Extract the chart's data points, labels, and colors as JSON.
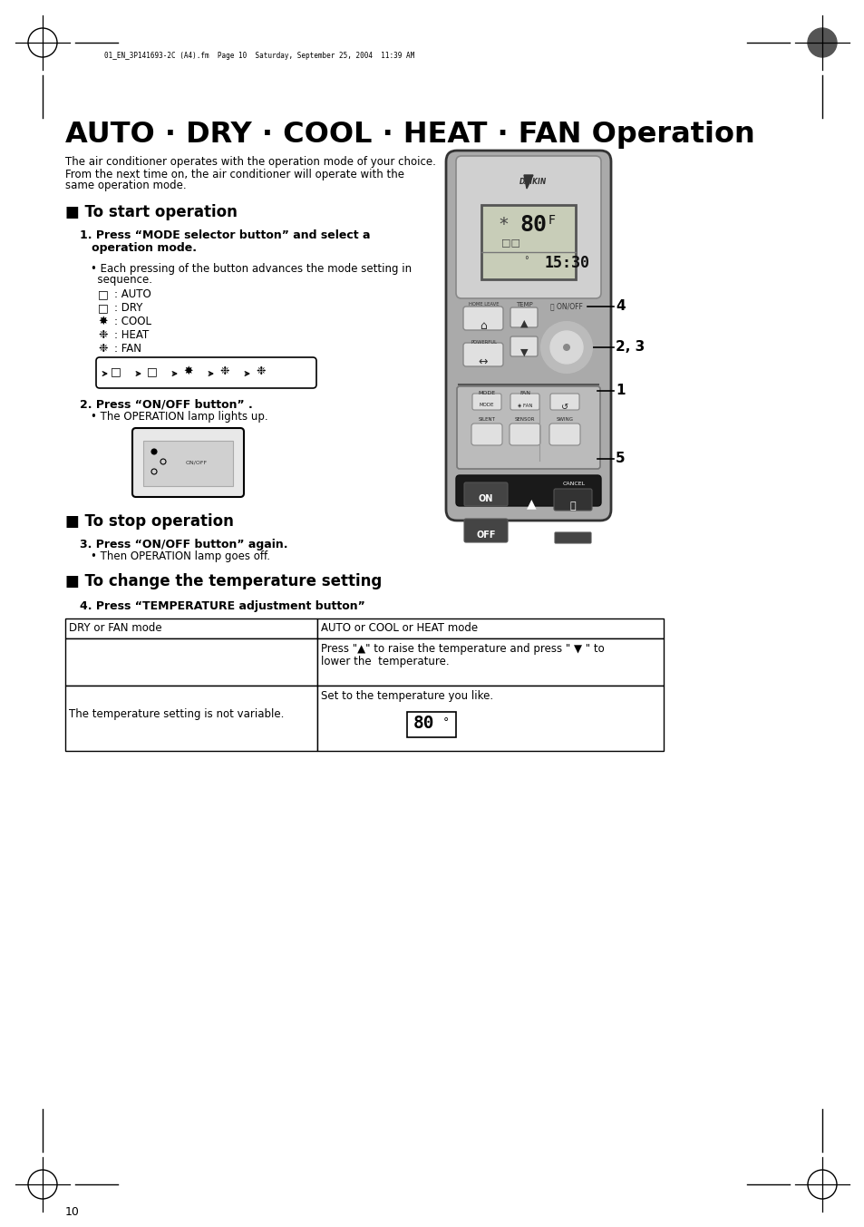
{
  "title": "AUTO · DRY · COOL · HEAT · FAN Operation",
  "page_num": "10",
  "header_text": "01_EN_3P141693-2C (A4).fm  Page 10  Saturday, September 25, 2004  11:39 AM",
  "intro_text1": "The air conditioner operates with the operation mode of your choice.",
  "intro_text2": "From the next time on, the air conditioner will operate with the",
  "intro_text3": "same operation mode.",
  "section1_title": "■ To start operation",
  "step1_line1": "1. Press “MODE selector button” and select a",
  "step1_line2": "   operation mode.",
  "step1_bullet1": "• Each pressing of the button advances the mode setting in",
  "step1_bullet2": "  sequence.",
  "mode1_icon": "□",
  "mode1_text": ": AUTO",
  "mode2_icon": "□",
  "mode2_text": ": DRY",
  "mode3_icon": "✸",
  "mode3_text": ": COOL",
  "mode4_icon": "❉",
  "mode4_text": ": HEAT",
  "mode5_icon": "❉",
  "mode5_text": ": FAN",
  "step2_line": "2. Press “ON/OFF button” .",
  "step2_bullet": "• The OPERATION lamp lights up.",
  "section2_title": "■ To stop operation",
  "step3_line": "3. Press “ON/OFF button” again.",
  "step3_bullet": "• Then OPERATION lamp goes off.",
  "section3_title": "■ To change the temperature setting",
  "step4_line": "4. Press “TEMPERATURE adjustment button”",
  "table_col1_header": "DRY or FAN mode",
  "table_col2_header": "AUTO or COOL or HEAT mode",
  "table_r1c2_line1": "Press \"▲\" to raise the temperature and press \" ▼ \" to",
  "table_r1c2_line2": "lower the  temperature.",
  "table_r2c1": "The temperature setting is not variable.",
  "table_r2c2": "Set to the temperature you like.",
  "bg_color": "#ffffff",
  "label_4": "4",
  "label_23": "2, 3",
  "label_1": "1",
  "label_5": "5"
}
